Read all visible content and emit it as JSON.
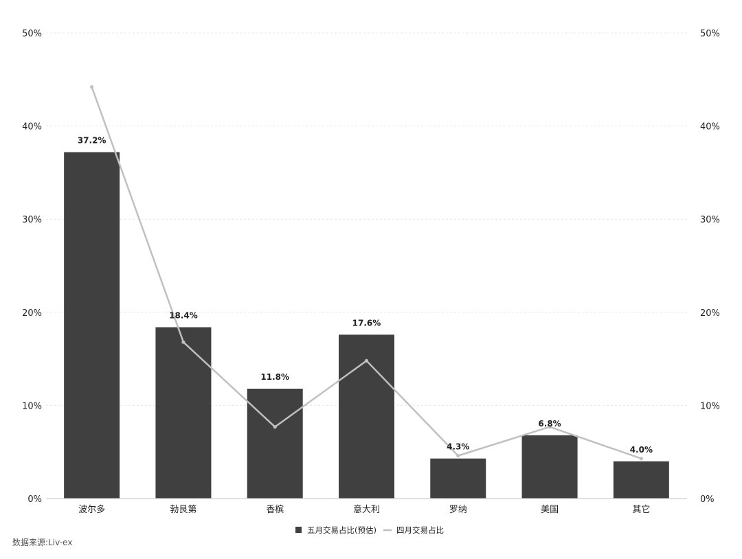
{
  "chart_data": {
    "type": "bar",
    "categories": [
      "波尔多",
      "勃艮第",
      "香槟",
      "意大利",
      "罗纳",
      "美国",
      "其它"
    ],
    "series": [
      {
        "name": "五月交易占比(预估)",
        "kind": "bar",
        "values": [
          37.2,
          18.4,
          11.8,
          17.6,
          4.3,
          6.8,
          4.0
        ],
        "data_labels": [
          "37.2%",
          "18.4%",
          "11.8%",
          "17.6%",
          "4.3%",
          "6.8%",
          "4.0%"
        ],
        "color": "#404040"
      },
      {
        "name": "四月交易占比",
        "kind": "line",
        "values": [
          44.2,
          16.8,
          7.7,
          14.8,
          4.6,
          7.7,
          4.3
        ],
        "color": "#c0c0c0"
      }
    ],
    "ylim": [
      0,
      50
    ],
    "y_ticks": [
      "0%",
      "10%",
      "20%",
      "30%",
      "40%",
      "50%"
    ],
    "grid": true,
    "legend": "bottom-center"
  },
  "source": "数据来源:Liv-ex"
}
